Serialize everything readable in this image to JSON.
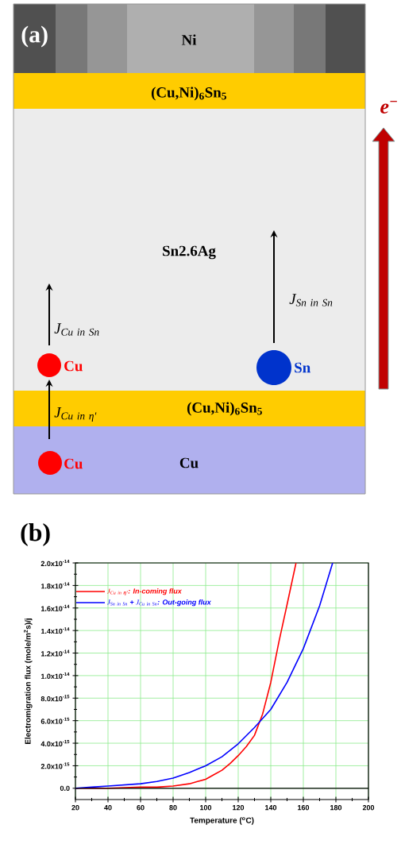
{
  "chart_data": [
    {
      "type": "other",
      "title": "(a)",
      "annotations": [
        "Ni",
        "(Cu,Ni)$_{6}$Sn$_{5}$",
        "e$^{−}$",
        "Sn2.6Ag",
        "\\mathit{J}_{\\mathit{Sn\\ in\\ Sn}}",
        "\\mathit{J}_{\\mathit{Cu\\ in\\ Sn}}",
        "Cu",
        "Sn",
        "(Cu,Ni)$_{6}$Sn$_{5}$",
        "\\mathit{J}_{\\mathit{Cu\\ in\\ }\\textit{η'}}",
        "Cu",
        "Cu"
      ]
    },
    {
      "type": "line",
      "title": "(b)",
      "xlabel": "Temperature ($^{o}$C)",
      "ylabel": "Electromigration flux (mole/m$^{2}$s)/j",
      "xlim": [
        20,
        200
      ],
      "xticks": [
        20,
        40,
        60,
        80,
        100,
        120,
        140,
        160,
        180,
        200
      ],
      "ylim": [
        -1e-15,
        2e-14
      ],
      "yticks": [
        {
          "value": 0,
          "label": "0.0"
        },
        {
          "value": 2e-15,
          "label": "2.0x10$^{-15}$"
        },
        {
          "value": 4e-15,
          "label": "4.0x10$^{-15}$"
        },
        {
          "value": 6e-15,
          "label": "6.0x10$^{-15}$"
        },
        {
          "value": 8e-15,
          "label": "8.0x10$^{-15}$"
        },
        {
          "value": 1e-14,
          "label": "1.0x10$^{-14}$"
        },
        {
          "value": 1.2e-14,
          "label": "1.2x10$^{-14}$"
        },
        {
          "value": 1.4e-14,
          "label": "1.4x10$^{-14}$"
        },
        {
          "value": 1.6e-14,
          "label": "1.6x10$^{-14}$"
        },
        {
          "value": 1.8e-14,
          "label": "1.8x10$^{-14}$"
        },
        {
          "value": 2e-14,
          "label": "2.0x10$^{-14}$"
        }
      ],
      "grid": true,
      "legend": "top left",
      "ref_lines": [
        {
          "axis": "y",
          "value": 0,
          "color": "#000000"
        }
      ],
      "series": [
        {
          "name": "\\mathit{J}_{\\mathit{Cu\\ in\\ }\\textit{η'}}\\textit{: In-coming flux}",
          "color": "#ff0000",
          "x": [
            20,
            40,
            60,
            70,
            80,
            85,
            90,
            95,
            100,
            105,
            110,
            115,
            120,
            125,
            130,
            135,
            140,
            145,
            150,
            155.5
          ],
          "values": [
            0,
            0,
            1e-16,
            1e-16,
            2e-16,
            3e-16,
            4e-16,
            6e-16,
            8e-16,
            1.2e-15,
            1.6e-15,
            2.2e-15,
            2.9e-15,
            3.7e-15,
            4.7e-15,
            6.6e-15,
            9.4e-15,
            1.3e-14,
            1.63e-14,
            2e-14
          ]
        },
        {
          "name": "\\mathit{J}_{\\mathit{Sn\\ in\\ Sn}}\\textit{ + }\\mathit{J}_{\\mathit{Cu\\ in\\ Sn}}\\textit{: Out-going flux}",
          "color": "#0000ff",
          "x": [
            20,
            30,
            40,
            50,
            60,
            70,
            80,
            90,
            100,
            110,
            120,
            130,
            140,
            150,
            160,
            170,
            178
          ],
          "values": [
            0,
            1e-16,
            2e-16,
            3e-16,
            4e-16,
            6e-16,
            9e-16,
            1.4e-15,
            2e-15,
            2.8e-15,
            3.95e-15,
            5.4e-15,
            7e-15,
            9.4e-15,
            1.24e-14,
            1.62e-14,
            2e-14
          ]
        }
      ]
    }
  ]
}
